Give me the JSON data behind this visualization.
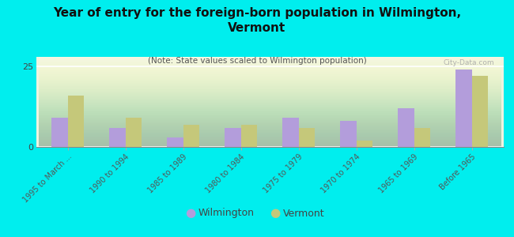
{
  "title": "Year of entry for the foreign-born population in Wilmington,\nVermont",
  "subtitle": "(Note: State values scaled to Wilmington population)",
  "background_color": "#00EEEE",
  "categories": [
    "1995 to March ...",
    "1990 to 1994",
    "1985 to 1989",
    "1980 to 1984",
    "1975 to 1979",
    "1970 to 1974",
    "1965 to 1969",
    "Before 1965"
  ],
  "wilmington_values": [
    9,
    6,
    3,
    6,
    9,
    8,
    12,
    24
  ],
  "vermont_values": [
    16,
    9,
    7,
    7,
    6,
    2,
    6,
    22
  ],
  "wilmington_color": "#b39ddb",
  "vermont_color": "#c5c87a",
  "ylim": [
    0,
    28
  ],
  "yticks": [
    0,
    25
  ],
  "watermark": "City-Data.com",
  "legend_labels": [
    "Wilmington",
    "Vermont"
  ],
  "title_fontsize": 11,
  "subtitle_fontsize": 7.5,
  "tick_fontsize": 7.5
}
